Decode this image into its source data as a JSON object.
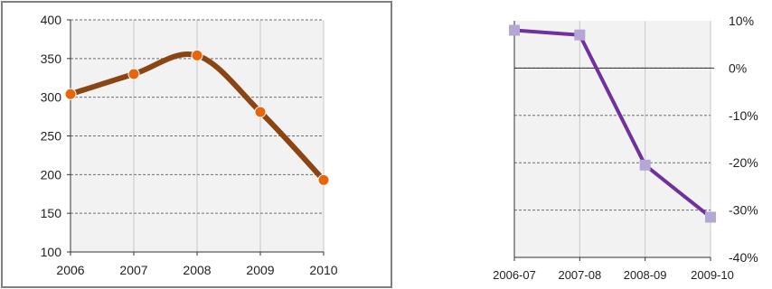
{
  "chart_data": [
    {
      "type": "line",
      "x": [
        2006,
        2007,
        2008,
        2009,
        2010
      ],
      "series": [
        {
          "values": [
            304,
            330,
            354,
            281,
            193
          ],
          "color": "#8B4513",
          "marker_color": "#E8650C"
        }
      ],
      "x_tick_labels": [
        "2006",
        "2007",
        "2008",
        "2009",
        "2010"
      ],
      "y_tick_labels": [
        "100",
        "150",
        "200",
        "250",
        "300",
        "350",
        "400"
      ],
      "ylim": [
        100,
        400
      ],
      "grid": true,
      "plot_background": "#F2F2F2"
    },
    {
      "type": "line",
      "categories": [
        "2006-07",
        "2007-08",
        "2008-09",
        "2009-10"
      ],
      "series": [
        {
          "values": [
            8,
            7,
            -20.5,
            -31.5
          ],
          "color": "#7030A0",
          "marker_color": "#B4A7D6"
        }
      ],
      "y_tick_labels": [
        "10%",
        "0%",
        "-10%",
        "-20%",
        "-30%",
        "-40%"
      ],
      "ylim": [
        -40,
        10
      ],
      "y_axis_position": "right",
      "grid": true,
      "plot_background": "#F2F2F2"
    }
  ]
}
